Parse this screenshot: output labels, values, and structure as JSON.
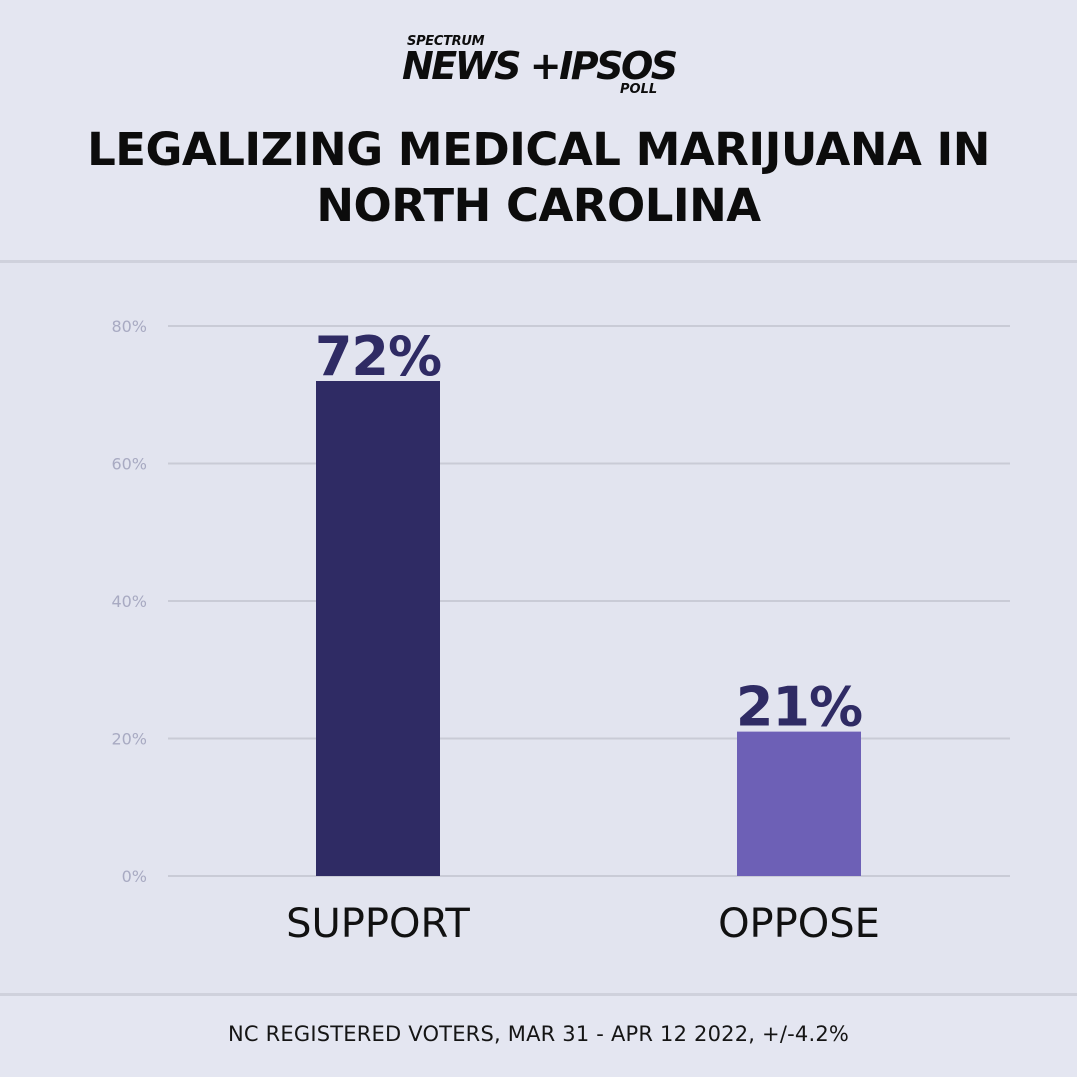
{
  "logo": {
    "spectrum": "SPECTRUM",
    "main": "NEWS +IPSOS",
    "poll": "POLL"
  },
  "title": "LEGALIZING MEDICAL MARIJUANA IN NORTH CAROLINA",
  "footnote": "NC REGISTERED VOTERS, MAR 31 - APR 12 2022, +/-4.2%",
  "colors": {
    "support_bar": "#2f2b64",
    "oppose_bar": "#6d60b6",
    "value_label": "#2f2b64",
    "gridline": "#c9cbd6",
    "tick_label": "#a8aac2",
    "category_label": "#111111"
  },
  "chart_data": {
    "type": "bar",
    "title": "LEGALIZING MEDICAL MARIJUANA IN NORTH CAROLINA",
    "categories": [
      "SUPPORT",
      "OPPOSE"
    ],
    "values": [
      72,
      21
    ],
    "data_labels": [
      "72%",
      "21%"
    ],
    "ylim": [
      0,
      80
    ],
    "yticks": [
      0,
      20,
      40,
      60,
      80
    ],
    "ytick_labels": [
      "0%",
      "20%",
      "40%",
      "60%",
      "80%"
    ],
    "grid": true,
    "legend": "none"
  }
}
